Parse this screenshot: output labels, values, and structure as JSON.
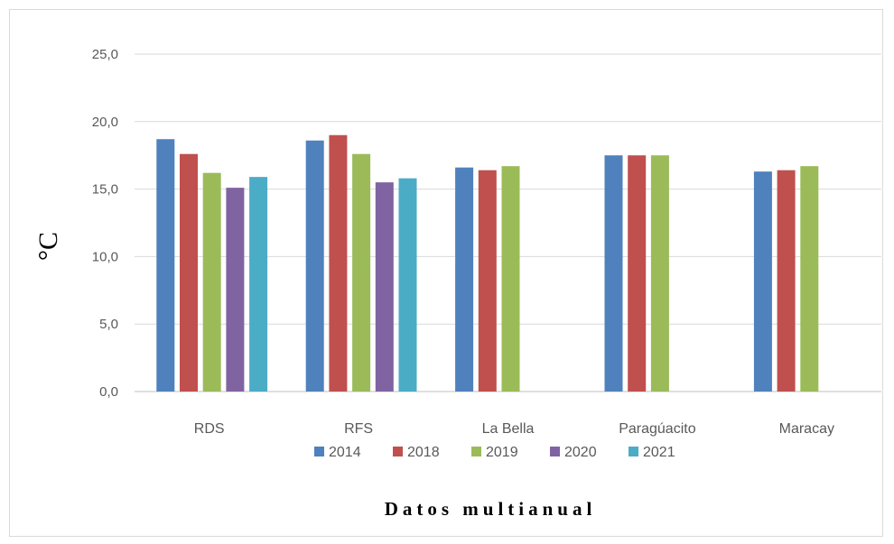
{
  "chart_data": {
    "type": "bar",
    "title": "",
    "xlabel": "Datos multianual",
    "ylabel": "°C",
    "ylim": [
      0,
      25
    ],
    "yticks": [
      "0,0",
      "5,0",
      "10,0",
      "15,0",
      "20,0",
      "25,0"
    ],
    "grid": true,
    "legend_position": "bottom",
    "categories": [
      "RDS",
      "RFS",
      "La Bella",
      "Paragúacito",
      "Maracay"
    ],
    "series": [
      {
        "name": "2014",
        "color": "#4f81bd",
        "values": [
          18.7,
          18.6,
          16.6,
          17.5,
          16.3
        ]
      },
      {
        "name": "2018",
        "color": "#c0504d",
        "values": [
          17.6,
          19.0,
          16.4,
          17.5,
          16.4
        ]
      },
      {
        "name": "2019",
        "color": "#9bbb59",
        "values": [
          16.2,
          17.6,
          16.7,
          17.5,
          16.7
        ]
      },
      {
        "name": "2020",
        "color": "#8064a2",
        "values": [
          15.1,
          15.5,
          null,
          null,
          null
        ]
      },
      {
        "name": "2021",
        "color": "#4bacc6",
        "values": [
          15.9,
          15.8,
          null,
          null,
          null
        ]
      }
    ]
  }
}
